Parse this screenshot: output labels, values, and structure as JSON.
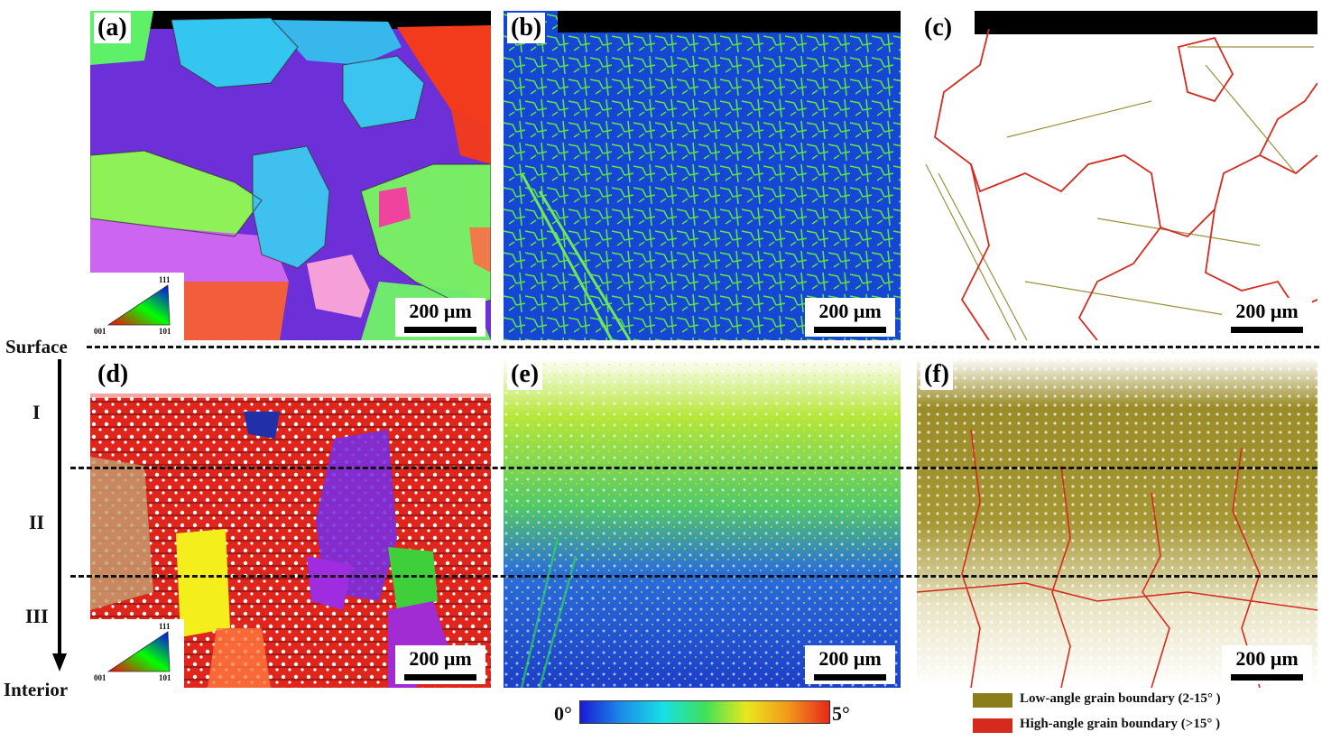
{
  "panels": {
    "a": {
      "label": "(a)",
      "scale": "200 μm",
      "ipf": [
        "111",
        "001",
        "101"
      ]
    },
    "b": {
      "label": "(b)",
      "scale": "200 μm"
    },
    "c": {
      "label": "(c)",
      "scale": "200 μm"
    },
    "d": {
      "label": "(d)",
      "scale": "200 μm",
      "ipf": [
        "111",
        "001",
        "101"
      ]
    },
    "e": {
      "label": "(e)",
      "scale": "200 μm"
    },
    "f": {
      "label": "(f)",
      "scale": "200 μm"
    }
  },
  "side": {
    "top": "Surface",
    "bottom": "Interior",
    "zones": [
      "I",
      "II",
      "III"
    ]
  },
  "colorbar": {
    "min": "0°",
    "max": "5°"
  },
  "legend": {
    "low": {
      "label": "Low-angle grain boundary (2-15° )",
      "color": "#8a7d1a"
    },
    "high": {
      "label": "High-angle grain boundary (>15° )",
      "color": "#d62a1f"
    }
  }
}
